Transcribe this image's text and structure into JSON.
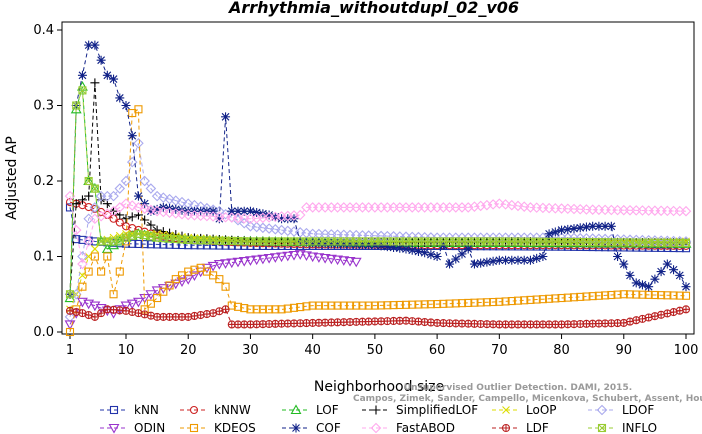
{
  "chart_data": {
    "type": "line",
    "title": "Arrhythmia_withoutdupl_02_v06",
    "xlabel": "Neighborhood size",
    "ylabel": "Adjusted AP",
    "xlim": [
      1,
      100
    ],
    "ylim": [
      0,
      0.4
    ],
    "xticks": [
      1,
      10,
      20,
      30,
      40,
      50,
      60,
      70,
      80,
      90,
      100
    ],
    "yticks": [
      0.0,
      0.1,
      0.2,
      0.3,
      0.4
    ],
    "grid": false,
    "legend_position": "bottom",
    "watermark": [
      "Campos, Zimek, Sander, Campello, Micenkova, Schubert, Assent, Houle",
      "Unsupervised Outlier Detection. DAMI, 2015."
    ],
    "series": [
      {
        "name": "kNN",
        "color": "#2233aa",
        "marker": "square",
        "points": [
          [
            1,
            0.165
          ],
          [
            2,
            0.123
          ],
          [
            3,
            0.122
          ],
          [
            5,
            0.12
          ],
          [
            10,
            0.117
          ],
          [
            20,
            0.115
          ],
          [
            30,
            0.114
          ],
          [
            40,
            0.114
          ],
          [
            60,
            0.114
          ],
          [
            80,
            0.113
          ],
          [
            100,
            0.111
          ]
        ]
      },
      {
        "name": "kNNW",
        "color": "#cc2222",
        "marker": "circle",
        "points": [
          [
            1,
            0.172
          ],
          [
            2,
            0.17
          ],
          [
            3,
            0.168
          ],
          [
            5,
            0.163
          ],
          [
            7,
            0.155
          ],
          [
            10,
            0.14
          ],
          [
            15,
            0.128
          ],
          [
            20,
            0.122
          ],
          [
            30,
            0.118
          ],
          [
            40,
            0.116
          ],
          [
            60,
            0.115
          ],
          [
            80,
            0.115
          ],
          [
            100,
            0.114
          ]
        ]
      },
      {
        "name": "LOF",
        "color": "#22bb22",
        "marker": "triangle",
        "points": [
          [
            1,
            0.045
          ],
          [
            2,
            0.295
          ],
          [
            3,
            0.325
          ],
          [
            4,
            0.2
          ],
          [
            5,
            0.19
          ],
          [
            6,
            0.12
          ],
          [
            7,
            0.11
          ],
          [
            8,
            0.115
          ],
          [
            10,
            0.125
          ],
          [
            12,
            0.13
          ],
          [
            15,
            0.125
          ],
          [
            20,
            0.122
          ],
          [
            30,
            0.12
          ],
          [
            50,
            0.118
          ],
          [
            70,
            0.118
          ],
          [
            100,
            0.117
          ]
        ]
      },
      {
        "name": "SimplifiedLOF",
        "color": "#000000",
        "marker": "plus",
        "points": [
          [
            1,
            0.05
          ],
          [
            2,
            0.17
          ],
          [
            3,
            0.175
          ],
          [
            4,
            0.18
          ],
          [
            5,
            0.33
          ],
          [
            6,
            0.175
          ],
          [
            7,
            0.17
          ],
          [
            8,
            0.16
          ],
          [
            10,
            0.15
          ],
          [
            12,
            0.155
          ],
          [
            15,
            0.135
          ],
          [
            20,
            0.125
          ],
          [
            30,
            0.12
          ],
          [
            50,
            0.118
          ],
          [
            70,
            0.12
          ],
          [
            100,
            0.118
          ]
        ]
      },
      {
        "name": "LoOP",
        "color": "#dddd00",
        "marker": "x",
        "points": [
          [
            1,
            0.03
          ],
          [
            2,
            0.05
          ],
          [
            4,
            0.1
          ],
          [
            6,
            0.12
          ],
          [
            10,
            0.13
          ],
          [
            15,
            0.13
          ],
          [
            20,
            0.125
          ],
          [
            30,
            0.12
          ],
          [
            50,
            0.12
          ],
          [
            70,
            0.12
          ],
          [
            100,
            0.12
          ]
        ]
      },
      {
        "name": "LDOF",
        "color": "#aaaaee",
        "marker": "diamond",
        "points": [
          [
            1,
            0.02
          ],
          [
            2,
            0.05
          ],
          [
            3,
            0.1
          ],
          [
            4,
            0.15
          ],
          [
            6,
            0.18
          ],
          [
            8,
            0.18
          ],
          [
            10,
            0.2
          ],
          [
            12,
            0.25
          ],
          [
            13,
            0.2
          ],
          [
            15,
            0.18
          ],
          [
            20,
            0.17
          ],
          [
            25,
            0.16
          ],
          [
            30,
            0.14
          ],
          [
            40,
            0.13
          ],
          [
            60,
            0.125
          ],
          [
            80,
            0.125
          ],
          [
            100,
            0.12
          ]
        ]
      },
      {
        "name": "ODIN",
        "color": "#9933cc",
        "marker": "triangle-down",
        "points": [
          [
            1,
            0.01
          ],
          [
            3,
            0.04
          ],
          [
            5,
            0.035
          ],
          [
            8,
            0.025
          ],
          [
            10,
            0.035
          ],
          [
            12,
            0.04
          ],
          [
            15,
            0.055
          ],
          [
            20,
            0.07
          ],
          [
            23,
            0.085
          ],
          [
            25,
            0.09
          ],
          [
            30,
            0.095
          ],
          [
            35,
            0.1
          ],
          [
            38,
            0.103
          ],
          [
            40,
            0.1
          ],
          [
            45,
            0.095
          ],
          [
            47,
            0.093
          ]
        ]
      },
      {
        "name": "KDEOS",
        "color": "#ee9900",
        "marker": "square",
        "points": [
          [
            1,
            0.0
          ],
          [
            3,
            0.06
          ],
          [
            5,
            0.1
          ],
          [
            6,
            0.08
          ],
          [
            7,
            0.1
          ],
          [
            8,
            0.05
          ],
          [
            9,
            0.08
          ],
          [
            10,
            0.12
          ],
          [
            11,
            0.29
          ],
          [
            12,
            0.295
          ],
          [
            13,
            0.03
          ],
          [
            15,
            0.045
          ],
          [
            18,
            0.07
          ],
          [
            20,
            0.08
          ],
          [
            22,
            0.085
          ],
          [
            25,
            0.07
          ],
          [
            26,
            0.06
          ],
          [
            27,
            0.035
          ],
          [
            30,
            0.03
          ],
          [
            35,
            0.03
          ],
          [
            40,
            0.035
          ],
          [
            50,
            0.035
          ],
          [
            60,
            0.037
          ],
          [
            70,
            0.04
          ],
          [
            80,
            0.045
          ],
          [
            90,
            0.05
          ],
          [
            100,
            0.048
          ]
        ]
      },
      {
        "name": "COF",
        "color": "#112288",
        "marker": "star",
        "points": [
          [
            1,
            0.05
          ],
          [
            2,
            0.3
          ],
          [
            3,
            0.34
          ],
          [
            4,
            0.38
          ],
          [
            5,
            0.38
          ],
          [
            6,
            0.36
          ],
          [
            7,
            0.34
          ],
          [
            8,
            0.335
          ],
          [
            9,
            0.31
          ],
          [
            10,
            0.3
          ],
          [
            11,
            0.26
          ],
          [
            12,
            0.18
          ],
          [
            14,
            0.16
          ],
          [
            16,
            0.165
          ],
          [
            20,
            0.16
          ],
          [
            24,
            0.16
          ],
          [
            25,
            0.15
          ],
          [
            26,
            0.285
          ],
          [
            27,
            0.16
          ],
          [
            30,
            0.16
          ],
          [
            33,
            0.155
          ],
          [
            35,
            0.15
          ],
          [
            37,
            0.15
          ],
          [
            38,
            0.12
          ],
          [
            40,
            0.118
          ],
          [
            50,
            0.115
          ],
          [
            55,
            0.11
          ],
          [
            58,
            0.105
          ],
          [
            60,
            0.1
          ],
          [
            61,
            0.115
          ],
          [
            62,
            0.09
          ],
          [
            65,
            0.11
          ],
          [
            66,
            0.09
          ],
          [
            70,
            0.095
          ],
          [
            75,
            0.095
          ],
          [
            77,
            0.1
          ],
          [
            78,
            0.13
          ],
          [
            80,
            0.135
          ],
          [
            85,
            0.14
          ],
          [
            88,
            0.14
          ],
          [
            89,
            0.1
          ],
          [
            90,
            0.09
          ],
          [
            91,
            0.075
          ],
          [
            92,
            0.065
          ],
          [
            94,
            0.06
          ],
          [
            96,
            0.08
          ],
          [
            97,
            0.09
          ],
          [
            99,
            0.075
          ],
          [
            100,
            0.06
          ]
        ]
      },
      {
        "name": "FastABOD",
        "color": "#ffaaee",
        "marker": "diamond",
        "points": [
          [
            1,
            0.18
          ],
          [
            3,
            0.09
          ],
          [
            5,
            0.15
          ],
          [
            8,
            0.16
          ],
          [
            10,
            0.17
          ],
          [
            12,
            0.165
          ],
          [
            15,
            0.16
          ],
          [
            20,
            0.155
          ],
          [
            30,
            0.15
          ],
          [
            38,
            0.155
          ],
          [
            39,
            0.165
          ],
          [
            45,
            0.165
          ],
          [
            55,
            0.165
          ],
          [
            65,
            0.165
          ],
          [
            70,
            0.17
          ],
          [
            75,
            0.165
          ],
          [
            85,
            0.162
          ],
          [
            100,
            0.16
          ]
        ]
      },
      {
        "name": "LDF",
        "color": "#bb2222",
        "marker": "circle-plus",
        "points": [
          [
            1,
            0.028
          ],
          [
            3,
            0.025
          ],
          [
            5,
            0.02
          ],
          [
            7,
            0.03
          ],
          [
            10,
            0.028
          ],
          [
            12,
            0.025
          ],
          [
            15,
            0.02
          ],
          [
            20,
            0.02
          ],
          [
            24,
            0.025
          ],
          [
            26,
            0.03
          ],
          [
            27,
            0.01
          ],
          [
            30,
            0.01
          ],
          [
            40,
            0.012
          ],
          [
            50,
            0.014
          ],
          [
            55,
            0.015
          ],
          [
            60,
            0.012
          ],
          [
            70,
            0.01
          ],
          [
            80,
            0.01
          ],
          [
            90,
            0.012
          ],
          [
            100,
            0.03
          ]
        ]
      },
      {
        "name": "INFLO",
        "color": "#99cc33",
        "marker": "square-x",
        "points": [
          [
            1,
            0.05
          ],
          [
            2,
            0.3
          ],
          [
            3,
            0.32
          ],
          [
            4,
            0.2
          ],
          [
            5,
            0.19
          ],
          [
            6,
            0.12
          ],
          [
            8,
            0.12
          ],
          [
            10,
            0.125
          ],
          [
            12,
            0.13
          ],
          [
            15,
            0.125
          ],
          [
            20,
            0.122
          ],
          [
            30,
            0.12
          ],
          [
            50,
            0.12
          ],
          [
            70,
            0.12
          ],
          [
            100,
            0.118
          ]
        ]
      }
    ]
  }
}
